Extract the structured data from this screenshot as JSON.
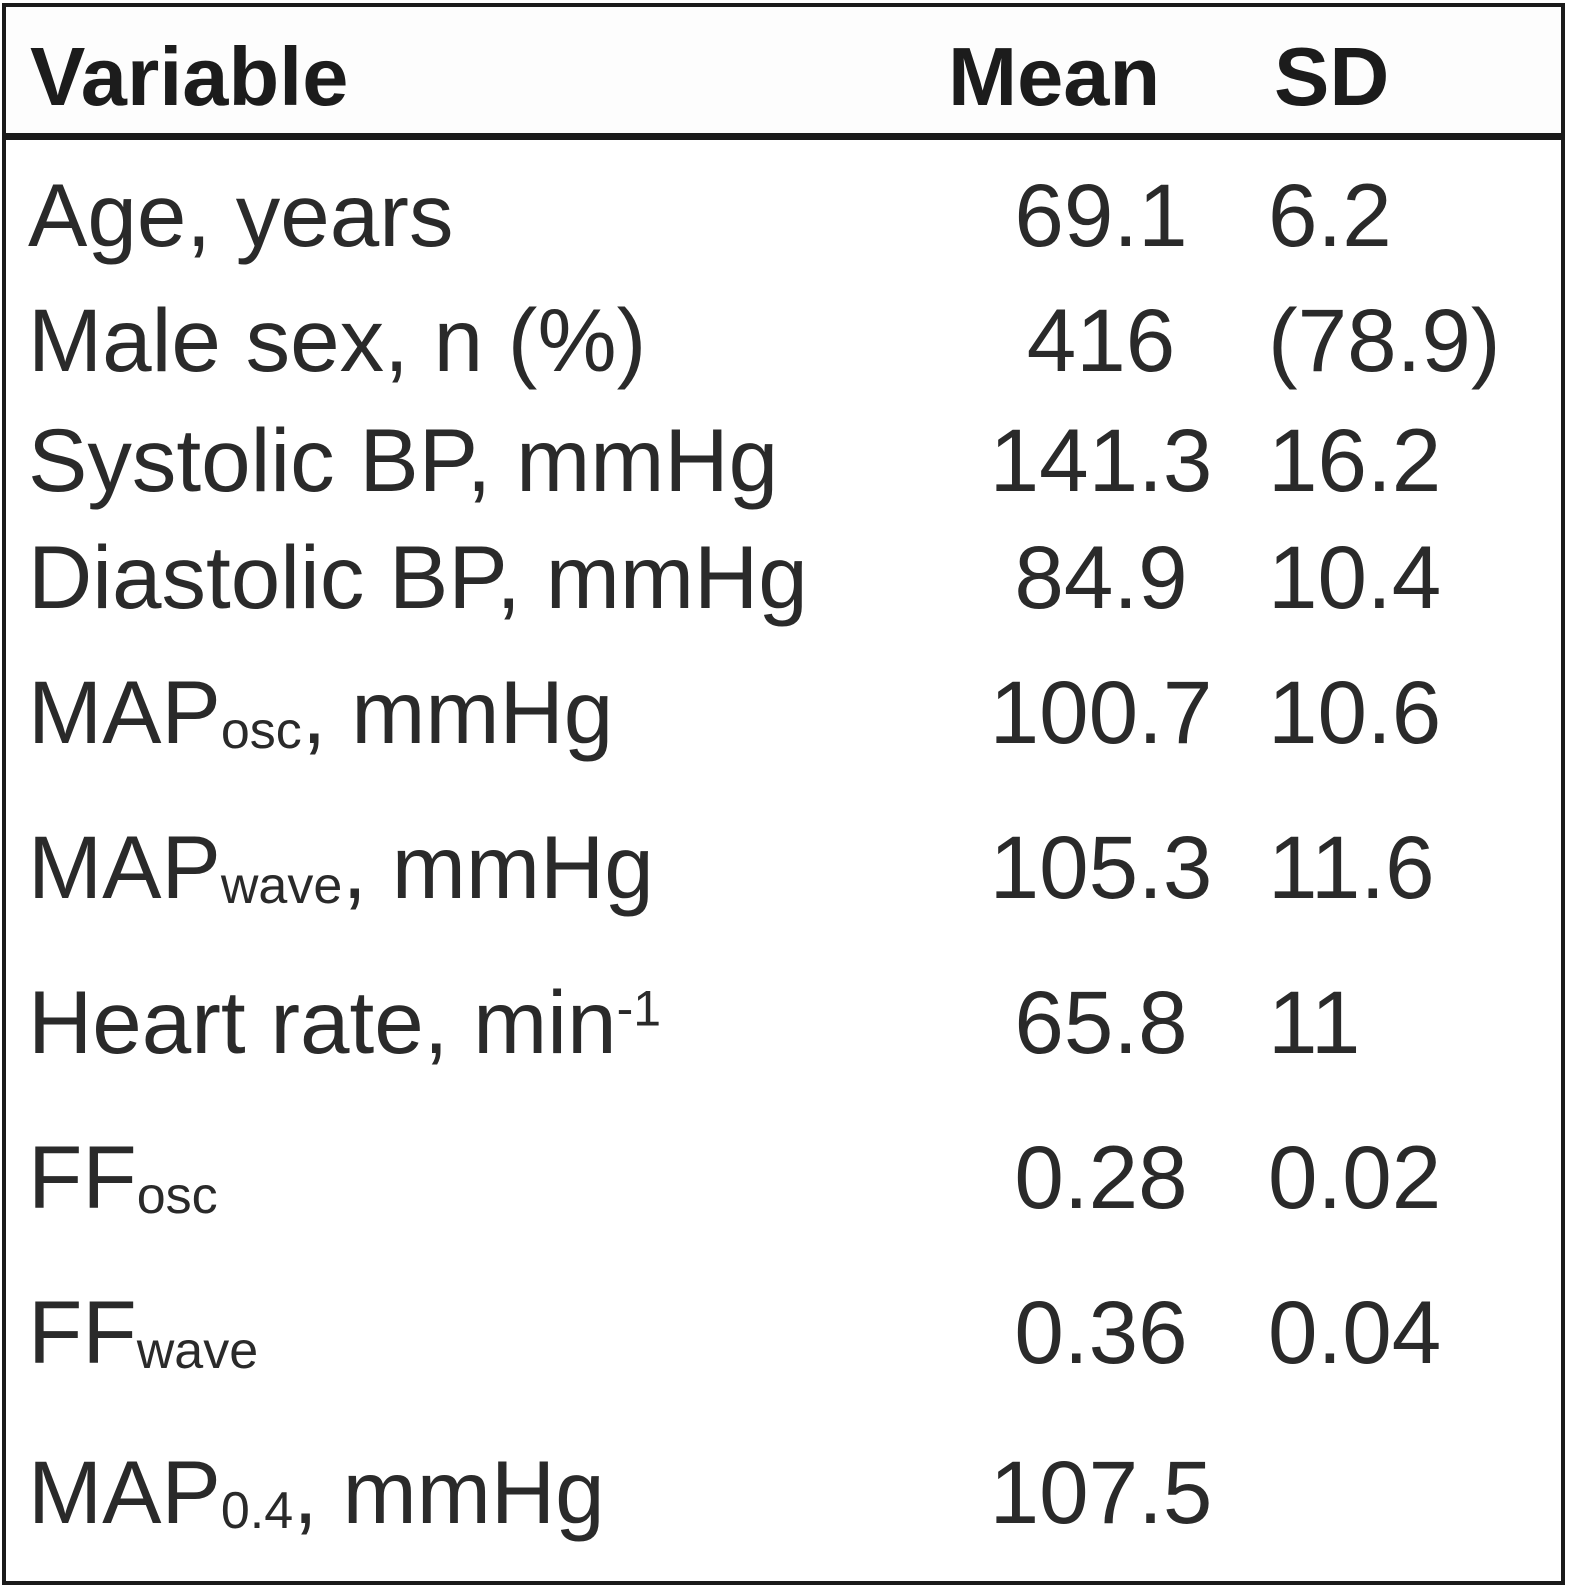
{
  "table": {
    "headers": {
      "variable": "Variable",
      "mean": "Mean",
      "sd": "SD"
    },
    "rows": [
      {
        "label": "Age, years",
        "sub": "",
        "sup": "",
        "suffix": "",
        "mean": "69.1",
        "sd": "6.2"
      },
      {
        "label": "Male sex, n (%)",
        "sub": "",
        "sup": "",
        "suffix": "",
        "mean": "416",
        "sd": "(78.9)"
      },
      {
        "label": "Systolic BP, mmHg",
        "sub": "",
        "sup": "",
        "suffix": "",
        "mean": "141.3",
        "sd": "16.2"
      },
      {
        "label": "Diastolic BP, mmHg",
        "sub": "",
        "sup": "",
        "suffix": "",
        "mean": "84.9",
        "sd": "10.4"
      },
      {
        "label": "MAP",
        "sub": "osc",
        "sup": "",
        "suffix": ", mmHg",
        "mean": "100.7",
        "sd": "10.6"
      },
      {
        "label": "MAP",
        "sub": "wave",
        "sup": "",
        "suffix": ", mmHg",
        "mean": "105.3",
        "sd": "11.6"
      },
      {
        "label": "Heart rate, min",
        "sub": "",
        "sup": "-1",
        "suffix": "",
        "mean": "65.8",
        "sd": "11"
      },
      {
        "label": "FF",
        "sub": "osc",
        "sup": "",
        "suffix": "",
        "mean": "0.28",
        "sd": "0.02"
      },
      {
        "label": "FF",
        "sub": "wave",
        "sup": "",
        "suffix": "",
        "mean": "0.36",
        "sd": "0.04"
      },
      {
        "label": "MAP",
        "sub": "0.4",
        "sup": "",
        "suffix": ", mmHg",
        "mean": "107.5",
        "sd": ""
      }
    ]
  }
}
